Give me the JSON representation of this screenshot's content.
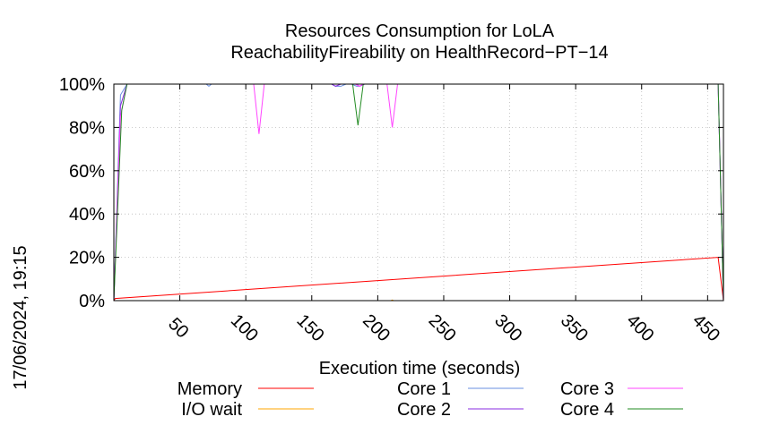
{
  "chart_data": {
    "type": "line",
    "title": "Resources Consumption for LoLA",
    "subtitle": "ReachabilityFireability on HealthRecord−PT−14",
    "xlabel": "Execution time (seconds)",
    "ylabel": "",
    "side_label": "17/06/2024, 19:15",
    "xlim": [
      0,
      462
    ],
    "ylim": [
      0,
      100
    ],
    "x_ticks": [
      50,
      100,
      150,
      200,
      250,
      300,
      350,
      400,
      450
    ],
    "y_ticks": [
      {
        "value": 0,
        "label": "0%"
      },
      {
        "value": 20,
        "label": "20%"
      },
      {
        "value": 40,
        "label": "40%"
      },
      {
        "value": 60,
        "label": "60%"
      },
      {
        "value": 80,
        "label": "80%"
      },
      {
        "value": 100,
        "label": "100%"
      }
    ],
    "grid": true,
    "legend_position": "bottom",
    "series": [
      {
        "name": "Memory",
        "color": "#ff0000",
        "x": [
          0,
          1,
          458,
          462
        ],
        "y": [
          0,
          1,
          20,
          0
        ]
      },
      {
        "name": "I/O wait",
        "color": "#ffa500",
        "x": [
          0,
          210,
          211,
          212,
          462
        ],
        "y": [
          0,
          0,
          0.3,
          0,
          0
        ]
      },
      {
        "name": "Core 1",
        "color": "#6a8fe0",
        "x": [
          0,
          5,
          10,
          70,
          72,
          74,
          165,
          168,
          172,
          176,
          180,
          184,
          186,
          190,
          458,
          462
        ],
        "y": [
          0,
          95,
          100,
          100,
          99,
          100,
          100,
          99,
          99,
          100,
          100,
          99,
          99,
          100,
          100,
          0
        ]
      },
      {
        "name": "Core 2",
        "color": "#8a2be2",
        "x": [
          0,
          5,
          10,
          165,
          168,
          172,
          184,
          186,
          190,
          458,
          462
        ],
        "y": [
          0,
          90,
          100,
          100,
          99,
          100,
          100,
          99,
          100,
          100,
          0
        ]
      },
      {
        "name": "Core 3",
        "color": "#ff44ff",
        "x": [
          0,
          5,
          10,
          106,
          110,
          114,
          183,
          186,
          189,
          207,
          211,
          215,
          458,
          462
        ],
        "y": [
          0,
          85,
          100,
          100,
          77,
          100,
          100,
          99,
          100,
          100,
          80,
          100,
          100,
          0
        ]
      },
      {
        "name": "Core 4",
        "color": "#228b22",
        "x": [
          0,
          6,
          10,
          181,
          185,
          189,
          458,
          462
        ],
        "y": [
          0,
          88,
          100,
          100,
          81,
          100,
          100,
          0
        ]
      }
    ]
  }
}
